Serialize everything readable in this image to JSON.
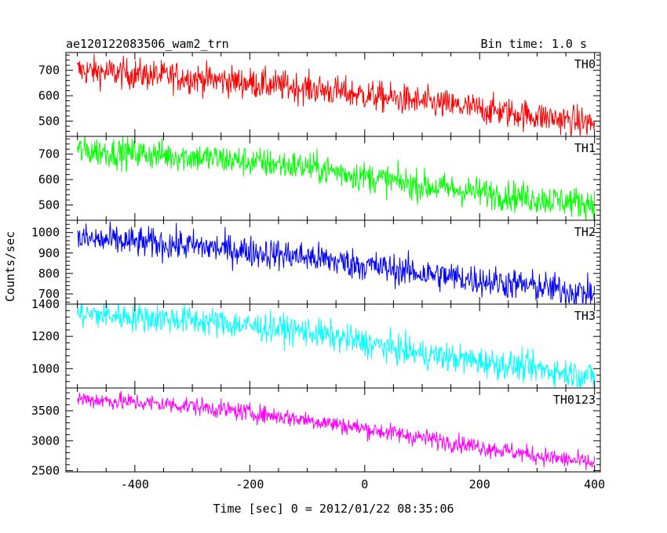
{
  "chart_data": {
    "type": "line",
    "title": "ae120122083506_wam2_trn",
    "bin_time": "Bin time: 1.0 s",
    "xlabel": "Time [sec] 0 = 2012/01/22 08:35:06",
    "ylabel": "Counts/sec",
    "xlim": [
      -520,
      410
    ],
    "xticks": [
      -400,
      -200,
      0,
      200,
      400
    ],
    "x_start": -500,
    "x_end": 400,
    "panels": [
      {
        "name": "TH0",
        "color": "#ff0000",
        "ylim": [
          440,
          770
        ],
        "yticks": [
          500,
          600,
          700
        ],
        "trend": [
          [
            -500,
            700
          ],
          [
            -300,
            670
          ],
          [
            -100,
            630
          ],
          [
            100,
            575
          ],
          [
            300,
            520
          ],
          [
            400,
            490
          ]
        ],
        "noise": 30
      },
      {
        "name": "TH1",
        "color": "#00ff00",
        "ylim": [
          440,
          770
        ],
        "yticks": [
          500,
          600,
          700
        ],
        "trend": [
          [
            -500,
            715
          ],
          [
            -300,
            690
          ],
          [
            -100,
            650
          ],
          [
            100,
            575
          ],
          [
            300,
            525
          ],
          [
            400,
            505
          ]
        ],
        "noise": 30
      },
      {
        "name": "TH2",
        "color": "#0000ff",
        "ylim": [
          650,
          1060
        ],
        "yticks": [
          700,
          800,
          900,
          1000
        ],
        "trend": [
          [
            -500,
            970
          ],
          [
            -300,
            935
          ],
          [
            -100,
            880
          ],
          [
            100,
            800
          ],
          [
            300,
            735
          ],
          [
            400,
            700
          ]
        ],
        "noise": 38
      },
      {
        "name": "TH3",
        "color": "#00ffff",
        "ylim": [
          880,
          1400
        ],
        "yticks": [
          1000,
          1200,
          1400
        ],
        "trend": [
          [
            -500,
            1340
          ],
          [
            -300,
            1300
          ],
          [
            -100,
            1230
          ],
          [
            100,
            1090
          ],
          [
            300,
            1000
          ],
          [
            400,
            950
          ]
        ],
        "noise": 45
      },
      {
        "name": "TH0123",
        "color": "#ff00ff",
        "ylim": [
          2480,
          3880
        ],
        "yticks": [
          2500,
          3000,
          3500
        ],
        "trend": [
          [
            -500,
            3700
          ],
          [
            -300,
            3580
          ],
          [
            -100,
            3350
          ],
          [
            100,
            3050
          ],
          [
            300,
            2750
          ],
          [
            400,
            2620
          ]
        ],
        "noise": 75
      }
    ]
  }
}
